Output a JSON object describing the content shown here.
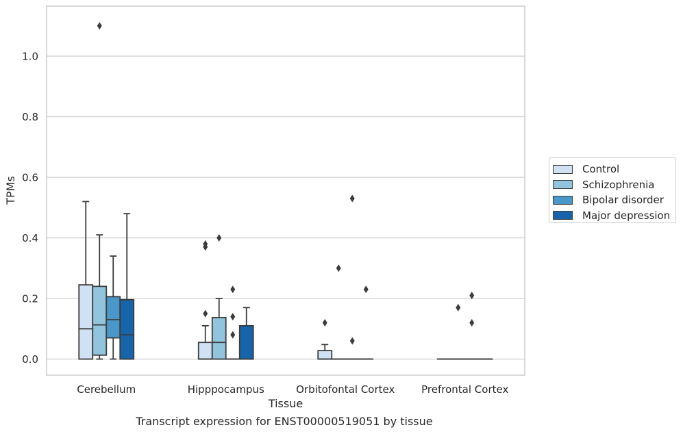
{
  "caption": "Transcript expression for ENST00000519051 by tissue",
  "colors": {
    "Control": "#cfe1f2",
    "Schizophrenia": "#93c4de",
    "Bipolar disorder": "#4a98c9",
    "Major depression": "#1764ab",
    "grid": "#cccccc",
    "edge": "#3c3c3c"
  },
  "chart_data": {
    "type": "box",
    "title": "",
    "xlabel": "Tissue",
    "ylabel": "TPMs",
    "ylim": [
      -0.053,
      1.165
    ],
    "yticks": [
      "0.0",
      "0.2",
      "0.4",
      "0.6",
      "0.8",
      "1.0"
    ],
    "grid": "horizontal",
    "legend_position": "right-outside",
    "categories": [
      "Cerebellum",
      "Hipppocampus",
      "Orbitofontal Cortex",
      "Prefrontal Cortex"
    ],
    "series": [
      {
        "name": "Control",
        "boxes": [
          {
            "whislo": 0.0,
            "q1": 0.0,
            "med": 0.1,
            "q3": 0.245,
            "whishi": 0.52,
            "fliers": []
          },
          {
            "whislo": 0.0,
            "q1": 0.0,
            "med": 0.0,
            "q3": 0.055,
            "whishi": 0.11,
            "fliers": [
              0.15,
              0.37,
              0.38
            ]
          },
          {
            "whislo": 0.0,
            "q1": 0.0,
            "med": 0.0,
            "q3": 0.028,
            "whishi": 0.048,
            "fliers": [
              0.12
            ]
          },
          {
            "whislo": 0.0,
            "q1": 0.0,
            "med": 0.0,
            "q3": 0.0,
            "whishi": 0.0,
            "fliers": []
          }
        ]
      },
      {
        "name": "Schizophrenia",
        "boxes": [
          {
            "whislo": 0.0,
            "q1": 0.013,
            "med": 0.113,
            "q3": 0.24,
            "whishi": 0.41,
            "fliers": [
              1.1
            ]
          },
          {
            "whislo": 0.0,
            "q1": 0.0,
            "med": 0.055,
            "q3": 0.137,
            "whishi": 0.2,
            "fliers": [
              0.4
            ]
          },
          {
            "whislo": 0.0,
            "q1": 0.0,
            "med": 0.0,
            "q3": 0.0,
            "whishi": 0.0,
            "fliers": [
              0.3
            ]
          },
          {
            "whislo": 0.0,
            "q1": 0.0,
            "med": 0.0,
            "q3": 0.0,
            "whishi": 0.0,
            "fliers": [
              0.17
            ]
          }
        ]
      },
      {
        "name": "Bipolar disorder",
        "boxes": [
          {
            "whislo": 0.0,
            "q1": 0.07,
            "med": 0.13,
            "q3": 0.206,
            "whishi": 0.34,
            "fliers": []
          },
          {
            "whislo": 0.0,
            "q1": 0.0,
            "med": 0.0,
            "q3": 0.0,
            "whishi": 0.0,
            "fliers": [
              0.08,
              0.14,
              0.23
            ]
          },
          {
            "whislo": 0.0,
            "q1": 0.0,
            "med": 0.0,
            "q3": 0.0,
            "whishi": 0.0,
            "fliers": [
              0.06,
              0.53
            ]
          },
          {
            "whislo": 0.0,
            "q1": 0.0,
            "med": 0.0,
            "q3": 0.0,
            "whishi": 0.0,
            "fliers": [
              0.12,
              0.21
            ]
          }
        ]
      },
      {
        "name": "Major depression",
        "boxes": [
          {
            "whislo": 0.0,
            "q1": 0.0,
            "med": 0.08,
            "q3": 0.196,
            "whishi": 0.48,
            "fliers": []
          },
          {
            "whislo": 0.0,
            "q1": 0.0,
            "med": 0.0,
            "q3": 0.11,
            "whishi": 0.17,
            "fliers": []
          },
          {
            "whislo": 0.0,
            "q1": 0.0,
            "med": 0.0,
            "q3": 0.0,
            "whishi": 0.0,
            "fliers": [
              0.23
            ]
          },
          {
            "whislo": 0.0,
            "q1": 0.0,
            "med": 0.0,
            "q3": 0.0,
            "whishi": 0.0,
            "fliers": []
          }
        ]
      }
    ]
  }
}
